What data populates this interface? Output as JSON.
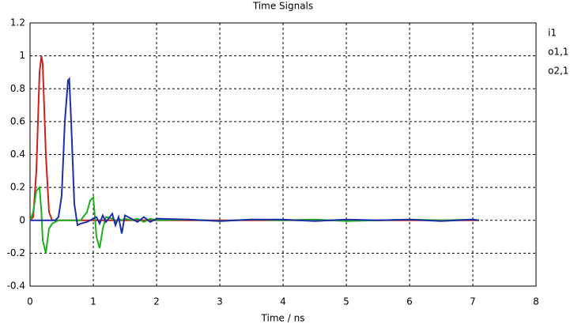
{
  "chart_data": {
    "type": "line",
    "title": "Time Signals",
    "x_label": "Time / ns",
    "x": [
      0,
      0.05,
      0.1,
      0.15,
      0.18,
      0.2,
      0.25,
      0.3,
      0.35,
      0.4,
      0.45,
      0.5,
      0.55,
      0.6,
      0.62,
      0.65,
      0.7,
      0.75,
      0.8,
      0.9,
      0.95,
      1,
      1.05,
      1.1,
      1.15,
      1.2,
      1.3,
      1.35,
      1.4,
      1.45,
      1.5,
      1.6,
      1.7,
      1.8,
      1.9,
      2,
      2.5,
      3,
      3.5,
      4,
      4.5,
      5,
      5.5,
      6,
      6.5,
      7,
      7.1
    ],
    "series": [
      {
        "name": "i1",
        "color": "#cc1f1f",
        "values": [
          0,
          0.02,
          0.3,
          0.9,
          1,
          0.95,
          0.4,
          0.05,
          0,
          0,
          0,
          0,
          0,
          0,
          0,
          0,
          0,
          0,
          0,
          0,
          0,
          0,
          0,
          0,
          0,
          0,
          0,
          0,
          0,
          0,
          0,
          0,
          0,
          0,
          0,
          0,
          0,
          0,
          0,
          0,
          0,
          0,
          0,
          0,
          0,
          0,
          0
        ]
      },
      {
        "name": "o1,1",
        "color": "#1fae1f",
        "values": [
          0,
          0.05,
          0.18,
          0.2,
          0.05,
          -0.12,
          -0.2,
          -0.05,
          -0.02,
          -0.01,
          0,
          0,
          0,
          0,
          0,
          0,
          0,
          0,
          0,
          0.05,
          0.12,
          0.14,
          -0.1,
          -0.17,
          -0.05,
          0.02,
          0.01,
          -0.01,
          0.01,
          0,
          0.01,
          0,
          0.01,
          -0.01,
          0.01,
          0,
          0.005,
          -0.005,
          0.005,
          0,
          0.005,
          -0.005,
          0,
          0.005,
          0,
          0.005,
          0
        ]
      },
      {
        "name": "o2,1",
        "color": "#1a2fa8",
        "values": [
          0,
          0,
          0,
          0,
          0,
          0,
          0,
          0,
          0,
          0,
          0.02,
          0.15,
          0.6,
          0.85,
          0.86,
          0.6,
          0.1,
          -0.03,
          -0.02,
          -0.01,
          0,
          0.01,
          0.02,
          -0.02,
          0.03,
          -0.01,
          0.04,
          -0.03,
          0.02,
          -0.08,
          0.03,
          0.01,
          -0.01,
          0.02,
          -0.01,
          0.01,
          0.005,
          -0.005,
          0.005,
          0.005,
          -0.005,
          0.005,
          0,
          0.005,
          -0.005,
          0.005,
          0
        ]
      }
    ],
    "xlim": [
      0,
      8
    ],
    "xticks": [
      0,
      1,
      2,
      3,
      4,
      5,
      6,
      7,
      8
    ],
    "ylim": [
      -0.4,
      1.2
    ],
    "yticks": [
      1.2,
      1,
      0.8,
      0.6,
      0.4,
      0.2,
      0,
      -0.2,
      -0.4
    ],
    "grid": true
  }
}
